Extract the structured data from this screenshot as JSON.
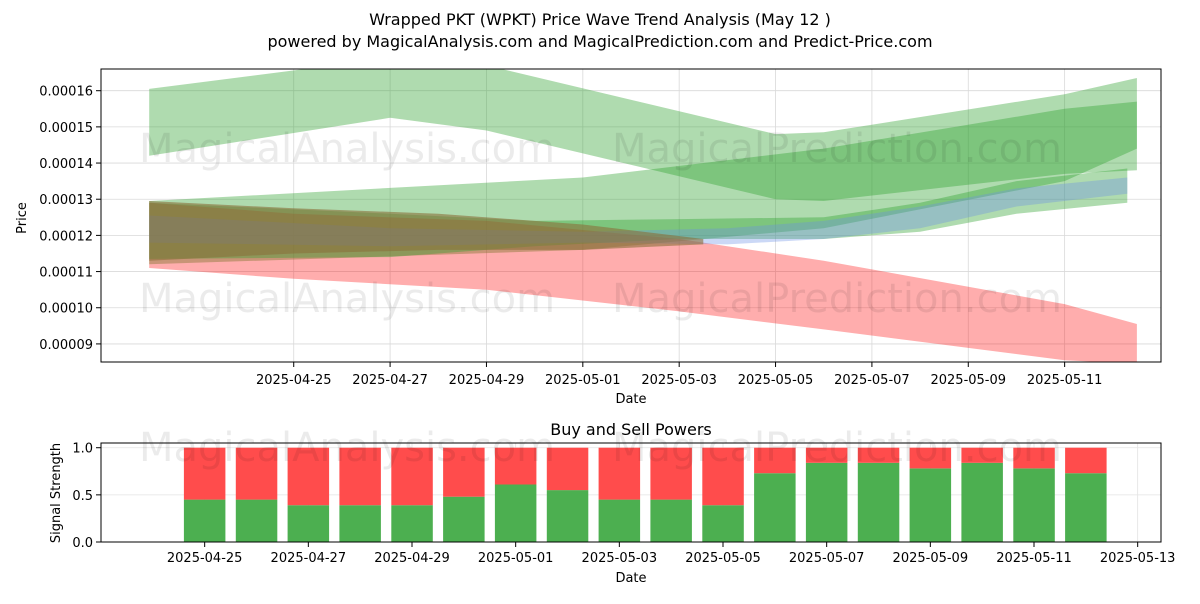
{
  "title": "Wrapped PKT (WPKT) Price Wave Trend Analysis (May 12 )",
  "subtitle": "powered by MagicalAnalysis.com and MagicalPrediction.com and Predict-Price.com",
  "watermarks": [
    "MagicalAnalysis.com",
    "MagicalPrediction.com"
  ],
  "colors": {
    "green": "#2ca02c",
    "red": "#ff0000",
    "blue": "#6a8fe6",
    "brown": "#8b6f3a",
    "buy": "#4caf50",
    "sell": "#ff4c4c"
  },
  "chart_data": [
    {
      "type": "area",
      "title": "",
      "xlabel": "Date",
      "ylabel": "Price",
      "xlim": [
        "2025-04-21",
        "2025-05-13"
      ],
      "ylim": [
        8.5e-05,
        0.000166
      ],
      "grid": true,
      "x_ticks": [
        "2025-04-25",
        "2025-04-27",
        "2025-04-29",
        "2025-05-01",
        "2025-05-03",
        "2025-05-05",
        "2025-05-07",
        "2025-05-09",
        "2025-05-11"
      ],
      "y_ticks": [
        "0.00009",
        "0.00010",
        "0.00011",
        "0.00012",
        "0.00013",
        "0.00014",
        "0.00015",
        "0.00016"
      ],
      "bands": [
        {
          "color": "green",
          "x": [
            "2025-04-22",
            "2025-04-27",
            "2025-04-29",
            "2025-05-05",
            "2025-05-06",
            "2025-05-11",
            "2025-05-12.5"
          ],
          "upper": [
            0.0001605,
            0.000169,
            0.000167,
            0.000148,
            0.0001485,
            0.000159,
            0.0001635
          ],
          "lower": [
            0.000142,
            0.0001525,
            0.000149,
            0.00013,
            0.0001295,
            0.000137,
            0.000138
          ]
        },
        {
          "color": "green",
          "x": [
            "2025-04-22",
            "2025-05-01",
            "2025-05-06",
            "2025-05-11",
            "2025-05-12.5"
          ],
          "upper": [
            0.0001295,
            0.000136,
            0.000144,
            0.000155,
            0.000157
          ],
          "lower": [
            0.000112,
            0.000116,
            0.000122,
            0.000135,
            0.000144
          ]
        },
        {
          "color": "red",
          "x": [
            "2025-04-22",
            "2025-04-25",
            "2025-04-29",
            "2025-05-03",
            "2025-05-06",
            "2025-05-11",
            "2025-05-12.5"
          ],
          "upper": [
            0.000129,
            0.000126,
            0.000124,
            0.000119,
            0.000113,
            0.000101,
            9.55e-05
          ],
          "lower": [
            0.000111,
            0.000108,
            0.000105,
            9.9e-05,
            9.4e-05,
            8.55e-05,
            8.45e-05
          ]
        },
        {
          "color": "green",
          "x": [
            "2025-04-22",
            "2025-04-27",
            "2025-04-30",
            "2025-05-03",
            "2025-05-06",
            "2025-05-08",
            "2025-05-10",
            "2025-05-12.3"
          ],
          "upper": [
            0.000129,
            0.000126,
            0.000124,
            0.0001245,
            0.000125,
            0.000129,
            0.000135,
            0.0001385
          ],
          "lower": [
            0.0001135,
            0.000114,
            0.000117,
            0.000119,
            0.000119,
            0.000121,
            0.000126,
            0.000129
          ]
        },
        {
          "color": "blue",
          "x": [
            "2025-04-22",
            "2025-04-27",
            "2025-05-01",
            "2025-05-04",
            "2025-05-06",
            "2025-05-08",
            "2025-05-10",
            "2025-05-12.3"
          ],
          "upper": [
            0.0001255,
            0.000122,
            0.000121,
            0.000122,
            0.000124,
            0.000128,
            0.000133,
            0.000136
          ],
          "lower": [
            0.000118,
            0.000117,
            0.000118,
            0.0001175,
            0.000119,
            0.000122,
            0.000128,
            0.0001315
          ]
        },
        {
          "color": "brown",
          "x": [
            "2025-04-22",
            "2025-04-25",
            "2025-04-28",
            "2025-05-01",
            "2025-05-03.5"
          ],
          "upper": [
            0.0001295,
            0.0001275,
            0.000126,
            0.000123,
            0.000119
          ],
          "lower": [
            0.000113,
            0.000115,
            0.000116,
            0.000116,
            0.0001175
          ]
        }
      ]
    },
    {
      "type": "bar",
      "title": "Buy and Sell Powers",
      "xlabel": "Date",
      "ylabel": "Signal Strength",
      "ylim": [
        0,
        1.05
      ],
      "y_ticks": [
        "0.0",
        "0.5",
        "1.0"
      ],
      "x_ticks": [
        "2025-04-25",
        "2025-04-27",
        "2025-04-29",
        "2025-05-01",
        "2025-05-03",
        "2025-05-05",
        "2025-05-07",
        "2025-05-09",
        "2025-05-11",
        "2025-05-13"
      ],
      "categories": [
        "2025-04-25",
        "2025-04-26",
        "2025-04-27",
        "2025-04-28",
        "2025-04-29",
        "2025-04-30",
        "2025-05-01",
        "2025-05-02",
        "2025-05-03",
        "2025-05-04",
        "2025-05-05",
        "2025-05-06",
        "2025-05-07",
        "2025-05-08",
        "2025-05-09",
        "2025-05-10",
        "2025-05-11",
        "2025-05-12"
      ],
      "series": [
        {
          "name": "Buy",
          "values": [
            0.45,
            0.45,
            0.39,
            0.39,
            0.39,
            0.48,
            0.61,
            0.55,
            0.45,
            0.45,
            0.39,
            0.73,
            0.84,
            0.84,
            0.78,
            0.84,
            0.78,
            0.73
          ]
        },
        {
          "name": "Sell",
          "values": [
            0.55,
            0.55,
            0.61,
            0.61,
            0.61,
            0.52,
            0.39,
            0.45,
            0.55,
            0.55,
            0.61,
            0.27,
            0.16,
            0.16,
            0.22,
            0.16,
            0.22,
            0.27
          ]
        }
      ]
    }
  ]
}
